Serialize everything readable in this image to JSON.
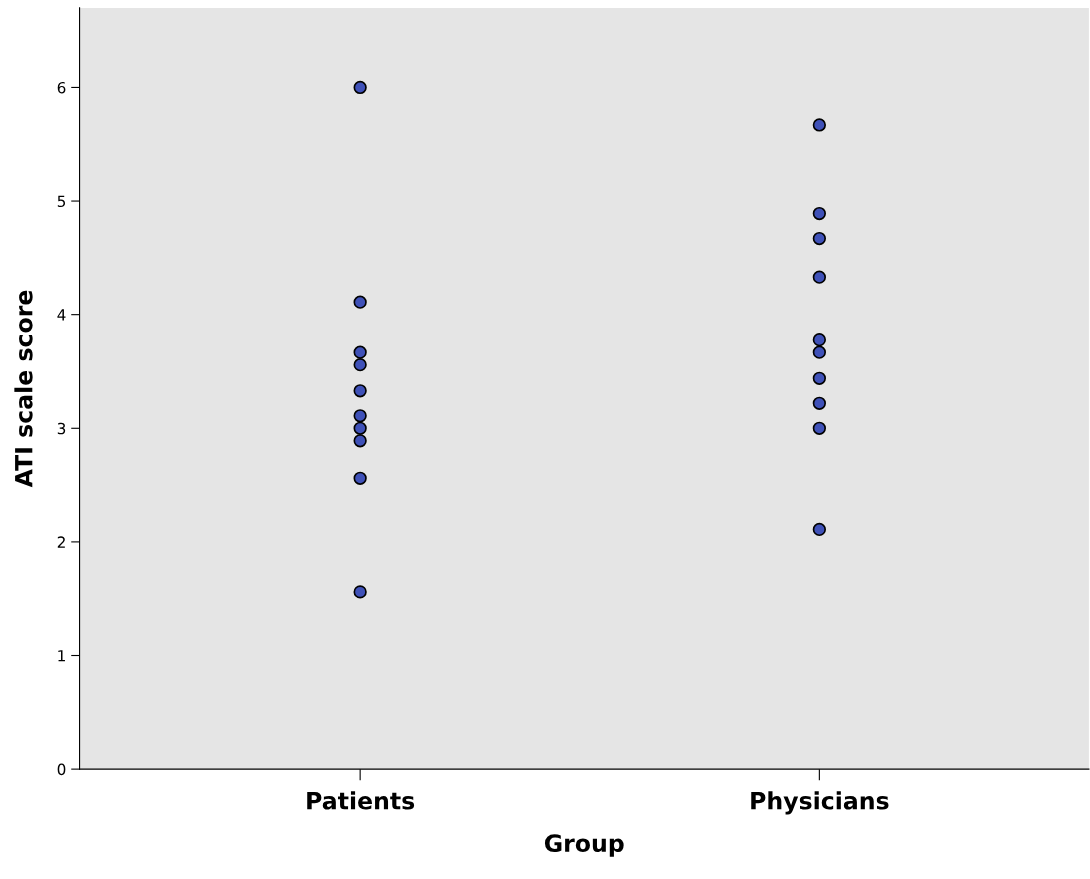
{
  "chart_data": {
    "type": "scatter",
    "xlabel": "Group",
    "ylabel": "ATI scale score",
    "categories": [
      "Patients",
      "Physicians"
    ],
    "series": [
      {
        "color": "#3f51b8",
        "x": [
          "Patients",
          "Patients",
          "Patients",
          "Patients",
          "Patients",
          "Patients",
          "Patients",
          "Patients",
          "Patients",
          "Patients",
          "Physicians",
          "Physicians",
          "Physicians",
          "Physicians",
          "Physicians",
          "Physicians",
          "Physicians",
          "Physicians",
          "Physicians",
          "Physicians"
        ],
        "values": [
          6.0,
          4.11,
          3.67,
          3.56,
          3.33,
          3.11,
          3.0,
          2.89,
          2.56,
          1.56,
          5.67,
          4.89,
          4.67,
          4.33,
          3.78,
          3.67,
          3.44,
          3.22,
          3.0,
          2.11
        ]
      }
    ],
    "ylim": [
      0,
      6.7
    ],
    "yticks": [
      0,
      1,
      2,
      3,
      4,
      5,
      6
    ],
    "grid": false,
    "legend": false,
    "marker": "circle"
  }
}
